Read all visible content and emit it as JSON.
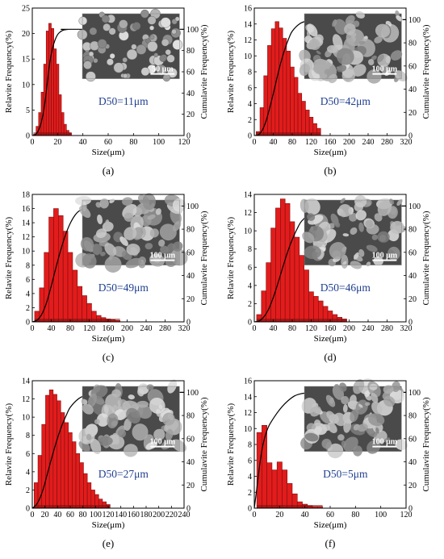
{
  "chart_data": [
    {
      "type": "bar",
      "panel_label": "(a)",
      "xlabel": "Size(μm)",
      "ylabel_left": "Relavite Frequency(%)",
      "ylabel_right": "Cumulavite Frequency(%)",
      "xlim": [
        0,
        120
      ],
      "ylim_left": [
        0,
        25
      ],
      "ylim_right": [
        0,
        120
      ],
      "x_ticks": [
        0,
        20,
        40,
        60,
        80,
        100,
        120
      ],
      "y_left_ticks": [
        0,
        5,
        10,
        15,
        20,
        25
      ],
      "y_right_ticks": [
        0,
        20,
        40,
        60,
        80,
        100
      ],
      "annotation": "D50=11μm",
      "image_scale_label": "50 μm",
      "bin_width": 2,
      "bins": {
        "x": [
          2,
          4,
          6,
          8,
          10,
          12,
          14,
          16,
          18,
          20,
          22,
          24,
          26,
          28,
          30
        ],
        "values": [
          0.3,
          1.8,
          4.5,
          8.5,
          14,
          20.5,
          22,
          21,
          17,
          14,
          8,
          4.5,
          2.2,
          1,
          0.5
        ]
      },
      "cumulative": {
        "x": [
          0,
          2,
          4,
          6,
          8,
          10,
          12,
          14,
          16,
          18,
          20,
          22,
          24,
          26,
          28,
          30,
          120
        ],
        "values": [
          0,
          0.5,
          3,
          8,
          17,
          31,
          51,
          70,
          82,
          90,
          95,
          97.5,
          99,
          99.6,
          99.9,
          100,
          100
        ]
      }
    },
    {
      "type": "bar",
      "panel_label": "(b)",
      "xlabel": "Size(μm)",
      "ylabel_left": "Relavite Frequency(%)",
      "ylabel_right": "Cumulavite Frequency(%)",
      "xlim": [
        0,
        320
      ],
      "ylim_left": [
        0,
        16
      ],
      "ylim_right": [
        0,
        110
      ],
      "x_ticks": [
        0,
        40,
        80,
        120,
        160,
        200,
        240,
        280,
        320
      ],
      "y_left_ticks": [
        0,
        2,
        4,
        6,
        8,
        10,
        12,
        14,
        16
      ],
      "y_right_ticks": [
        0,
        20,
        40,
        60,
        80,
        100
      ],
      "annotation": "D50=42μm",
      "image_scale_label": "100 μm",
      "bin_width": 8,
      "bins": {
        "x": [
          8,
          16,
          24,
          32,
          40,
          48,
          56,
          64,
          72,
          80,
          88,
          96,
          104,
          112,
          120,
          128,
          136
        ],
        "values": [
          0.5,
          3.5,
          7.5,
          11.3,
          13.4,
          14.3,
          13.5,
          12.2,
          10.6,
          8.6,
          7.3,
          5.3,
          4.3,
          3.2,
          2.3,
          1.5,
          0.9
        ]
      },
      "cumulative": {
        "x": [
          0,
          8,
          16,
          24,
          32,
          40,
          48,
          56,
          64,
          72,
          80,
          96,
          112,
          128,
          144,
          170,
          320
        ],
        "values": [
          0,
          0.5,
          4,
          11.5,
          23,
          36,
          50,
          63,
          74,
          83,
          90,
          96.5,
          99,
          100,
          100,
          100,
          100
        ]
      }
    },
    {
      "type": "bar",
      "panel_label": "(c)",
      "xlabel": "Size(μm)",
      "ylabel_left": "Relavite Frequency(%)",
      "ylabel_right": "Cumulavite Frequency(%)",
      "xlim": [
        0,
        320
      ],
      "ylim_left": [
        0,
        18
      ],
      "ylim_right": [
        0,
        110
      ],
      "x_ticks": [
        0,
        40,
        80,
        120,
        160,
        200,
        240,
        280,
        320
      ],
      "y_left_ticks": [
        0,
        2,
        4,
        6,
        8,
        10,
        12,
        14,
        16,
        18
      ],
      "y_right_ticks": [
        0,
        20,
        40,
        60,
        80,
        100
      ],
      "annotation": "D50=49μm",
      "image_scale_label": "100 μm",
      "bin_width": 10,
      "bins": {
        "x": [
          10,
          20,
          30,
          40,
          50,
          60,
          70,
          80,
          90,
          100,
          110,
          120,
          130,
          140,
          150,
          160,
          170,
          180
        ],
        "values": [
          1.5,
          4.8,
          9.8,
          14.8,
          16,
          15,
          12.8,
          9.8,
          7.3,
          5,
          3.7,
          2.6,
          1.5,
          0.9,
          0.6,
          0.4,
          0.3,
          0.2
        ]
      },
      "cumulative": {
        "x": [
          0,
          10,
          20,
          30,
          40,
          50,
          60,
          70,
          80,
          90,
          100,
          120,
          140,
          160,
          180,
          200,
          320
        ],
        "values": [
          0,
          1.5,
          6.5,
          16.5,
          31,
          47,
          62,
          75,
          85,
          92,
          96,
          98.6,
          99.5,
          99.8,
          100,
          100,
          100
        ]
      }
    },
    {
      "type": "bar",
      "panel_label": "(d)",
      "xlabel": "Size(μm)",
      "ylabel_left": "Relavite Frequency(%)",
      "ylabel_right": "Cumulavite Frequency(%)",
      "xlim": [
        0,
        320
      ],
      "ylim_left": [
        0,
        14
      ],
      "ylim_right": [
        0,
        110
      ],
      "x_ticks": [
        0,
        40,
        80,
        120,
        160,
        200,
        240,
        280,
        320
      ],
      "y_left_ticks": [
        0,
        2,
        4,
        6,
        8,
        10,
        12,
        14
      ],
      "y_right_ticks": [
        0,
        20,
        40,
        60,
        80,
        100
      ],
      "annotation": "D50=46μm",
      "image_scale_label": "100 μm",
      "bin_width": 10,
      "bins": {
        "x": [
          10,
          20,
          30,
          40,
          50,
          60,
          70,
          80,
          90,
          100,
          110,
          120,
          130,
          140,
          150,
          160,
          170,
          180,
          190
        ],
        "values": [
          0.8,
          3.4,
          6.5,
          10.3,
          12.5,
          13.5,
          13,
          11,
          9.3,
          7.3,
          5.7,
          3.3,
          2.8,
          2.3,
          1.7,
          1.2,
          0.8,
          0.5,
          0.3
        ]
      },
      "cumulative": {
        "x": [
          0,
          10,
          20,
          30,
          40,
          50,
          60,
          70,
          80,
          90,
          100,
          120,
          140,
          160,
          180,
          200,
          320
        ],
        "values": [
          0,
          0.8,
          4.2,
          10.7,
          21,
          33.5,
          47,
          60,
          71,
          80,
          87,
          94,
          97.5,
          99,
          99.8,
          100,
          100
        ]
      }
    },
    {
      "type": "bar",
      "panel_label": "(e)",
      "xlabel": "Size(μm)",
      "ylabel_left": "Relavite Frequency(%)",
      "ylabel_right": "Cumulavite Frequency(%)",
      "xlim": [
        0,
        240
      ],
      "ylim_left": [
        0,
        14
      ],
      "ylim_right": [
        0,
        110
      ],
      "x_ticks": [
        0,
        20,
        40,
        60,
        80,
        100,
        120,
        140,
        160,
        180,
        200,
        220,
        240
      ],
      "y_left_ticks": [
        0,
        2,
        4,
        6,
        8,
        10,
        12,
        14
      ],
      "y_right_ticks": [
        0,
        20,
        40,
        60,
        80,
        100
      ],
      "annotation": "D50=27μm",
      "image_scale_label": "100 μm",
      "bin_width": 6,
      "bins": {
        "x": [
          6,
          12,
          18,
          24,
          30,
          36,
          42,
          48,
          54,
          60,
          66,
          72,
          78,
          84,
          90,
          96,
          102,
          108,
          114,
          120
        ],
        "values": [
          2.8,
          5.8,
          9.2,
          12.4,
          13,
          12.5,
          11.8,
          10.5,
          9.4,
          8.3,
          7.3,
          6,
          5,
          3.8,
          2.8,
          2,
          1.5,
          1,
          0.7,
          0.4
        ]
      },
      "cumulative": {
        "x": [
          0,
          6,
          12,
          18,
          24,
          30,
          36,
          42,
          48,
          54,
          60,
          72,
          84,
          96,
          108,
          120,
          240
        ],
        "values": [
          0,
          2.8,
          8.6,
          17.8,
          30,
          42,
          53.5,
          64,
          73,
          80.5,
          87,
          94,
          97.5,
          99.2,
          99.8,
          100,
          100
        ]
      }
    },
    {
      "type": "bar",
      "panel_label": "(f)",
      "xlabel": "Size(μm)",
      "ylabel_left": "Relavite Frequency(%)",
      "ylabel_right": "Cumulavite Frequency(%)",
      "xlim": [
        0,
        120
      ],
      "ylim_left": [
        0,
        16
      ],
      "ylim_right": [
        0,
        110
      ],
      "x_ticks": [
        0,
        20,
        40,
        60,
        80,
        100,
        120
      ],
      "y_left_ticks": [
        0,
        2,
        4,
        6,
        8,
        10,
        12,
        14,
        16
      ],
      "y_right_ticks": [
        0,
        20,
        40,
        60,
        80,
        100
      ],
      "annotation": "D50=5μm",
      "image_scale_label": "100 μm",
      "bin_width": 4,
      "bins": {
        "x": [
          4,
          8,
          12,
          16,
          20,
          24,
          28,
          32,
          36,
          40,
          44,
          48,
          52
        ],
        "values": [
          9.5,
          10.4,
          5.7,
          4.8,
          5.8,
          4.8,
          3.1,
          1.8,
          0.8,
          0.5,
          0.3,
          0.2,
          0.2
        ]
      },
      "cumulative": {
        "x": [
          0,
          2,
          4,
          6,
          8,
          10,
          12,
          16,
          20,
          24,
          28,
          32,
          36,
          40,
          48,
          56,
          120
        ],
        "values": [
          0,
          17,
          35,
          50,
          60,
          67,
          72,
          79,
          85,
          90,
          94,
          97,
          98.5,
          99.3,
          99.8,
          100,
          100
        ]
      }
    }
  ],
  "colors": {
    "bar_fill": "#e21c1c",
    "bar_edge": "#7a0f0f",
    "curve": "#000000",
    "annotation": "#1f3f8f",
    "sem_dark": "#4a4a4a",
    "sem_light": "#b8b8b8"
  }
}
